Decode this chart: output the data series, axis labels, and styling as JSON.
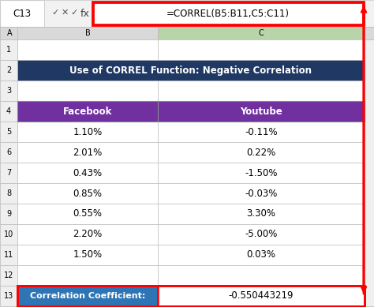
{
  "formula_bar_text": "=CORREL(B5:B11,C5:C11)",
  "cell_ref": "C13",
  "title": "Use of CORREL Function: Negative Correlation",
  "title_bg": "#1F3864",
  "title_color": "#FFFFFF",
  "header_bg": "#7030A0",
  "header_color": "#FFFFFF",
  "headers": [
    "Facebook",
    "Youtube"
  ],
  "data_rows": [
    [
      "1.10%",
      "-0.11%"
    ],
    [
      "2.01%",
      "0.22%"
    ],
    [
      "0.43%",
      "-1.50%"
    ],
    [
      "0.85%",
      "-0.03%"
    ],
    [
      "0.55%",
      "3.30%"
    ],
    [
      "2.20%",
      "-5.00%"
    ],
    [
      "1.50%",
      "0.03%"
    ]
  ],
  "corr_label": "Correlation Coefficient:",
  "corr_label_bg": "#2E75B6",
  "corr_label_color": "#FFFFFF",
  "corr_value": "-0.550443219",
  "cell_border_color": "#AAAAAA",
  "excel_bg": "#E8E8E8",
  "formula_bar_border": "#FF0000",
  "red_color": "#FF0000",
  "col_header_bg": "#D9D9D9",
  "col_header_sel_bg": "#B8D4A8",
  "row_bg": "#FFFFFF",
  "grid_color": "#C0C0C0",
  "rn_bg": "#EFEFEF",
  "rn_border": "#BBBBBB",
  "formula_bar_bg": "#FFFFFF",
  "chrome_bg": "#F2F2F2",
  "scrollbar_bg": "#F0F0F0"
}
